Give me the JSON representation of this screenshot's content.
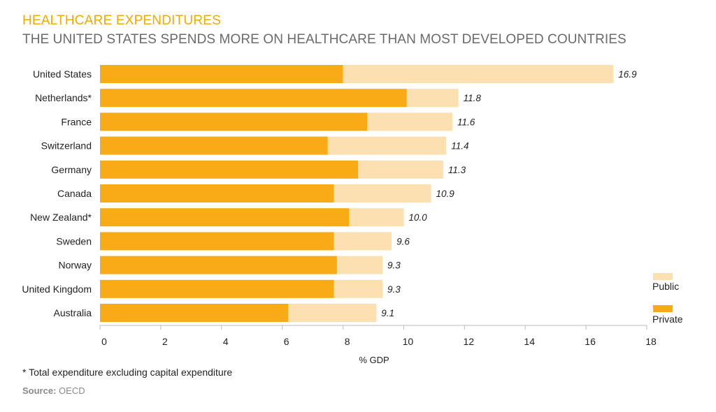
{
  "header": {
    "title": "HEALTHCARE EXPENDITURES",
    "subtitle": "THE UNITED STATES SPENDS MORE ON HEALTHCARE THAN MOST DEVELOPED COUNTRIES"
  },
  "footer": {
    "footnote": "* Total expenditure excluding capital expenditure",
    "source_label": "Source:",
    "source_value": "OECD"
  },
  "colors": {
    "private": "#f9ab17",
    "public": "#fde0b1",
    "axis": "#bbbbbb"
  },
  "chart_data": {
    "type": "bar",
    "orientation": "horizontal",
    "stacked": true,
    "categories": [
      "United States",
      "Netherlands*",
      "France",
      "Switzerland",
      "Germany",
      "Canada",
      "New Zealand*",
      "Sweden",
      "Norway",
      "United Kingdom",
      "Australia"
    ],
    "series": [
      {
        "name": "Private",
        "values": [
          8.0,
          10.1,
          8.8,
          7.5,
          8.5,
          7.7,
          8.2,
          7.7,
          7.8,
          7.7,
          6.2
        ]
      },
      {
        "name": "Public",
        "values": [
          8.9,
          1.7,
          2.8,
          3.9,
          2.8,
          3.2,
          1.8,
          1.9,
          1.5,
          1.6,
          2.9
        ]
      }
    ],
    "totals": [
      "16.9",
      "11.8",
      "11.6",
      "11.4",
      "11.3",
      "10.9",
      "10.0",
      "9.6",
      "9.3",
      "9.3",
      "9.1"
    ],
    "xlabel": "% GDP",
    "ylabel": "",
    "xlim": [
      0,
      18
    ],
    "xticks": [
      "0",
      "2",
      "4",
      "6",
      "8",
      "10",
      "12",
      "14",
      "16",
      "18"
    ],
    "grid": false,
    "legend": {
      "placement": "right",
      "order": [
        "Public",
        "Private"
      ]
    }
  }
}
